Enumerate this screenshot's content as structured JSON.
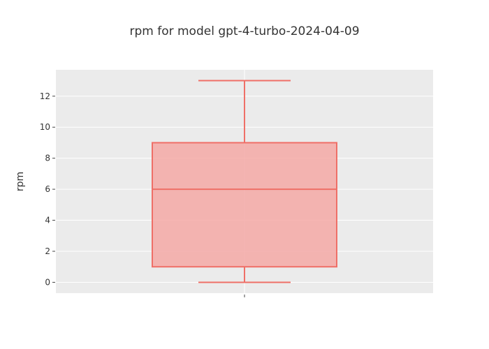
{
  "chart_data": {
    "type": "box",
    "title": "rpm for model gpt-4-turbo-2024-04-09",
    "xlabel": "",
    "ylabel": "rpm",
    "ylim": [
      -0.7,
      13.7
    ],
    "yticks": [
      0,
      2,
      4,
      6,
      8,
      10,
      12
    ],
    "grid": true,
    "legend": "none",
    "colors": {
      "box_fill": "#f4a9a6",
      "box_line": "#ef6f67",
      "plot_bg": "#ebebeb",
      "grid": "#ffffff",
      "text": "#333333"
    },
    "series": [
      {
        "min": 0,
        "q1": 1,
        "median": 6,
        "q3": 9,
        "max": 13
      }
    ]
  }
}
